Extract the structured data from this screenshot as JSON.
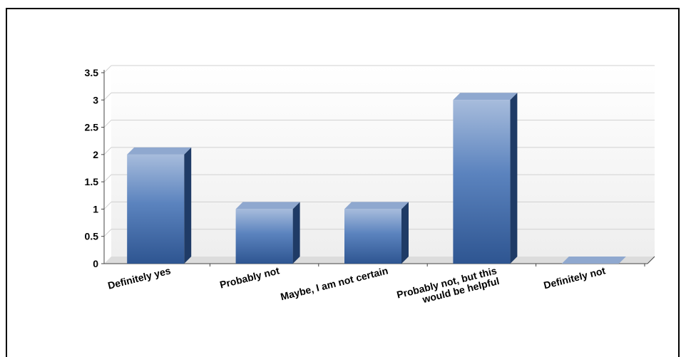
{
  "chart_data": {
    "type": "bar",
    "title": "",
    "xlabel": "",
    "ylabel": "",
    "categories": [
      [
        "Definitely yes"
      ],
      [
        "Probably not"
      ],
      [
        "Maybe, I am not certain"
      ],
      [
        "Probably not, but this",
        "would be helpful"
      ],
      [
        "Definitely not"
      ]
    ],
    "values": [
      2,
      1,
      1,
      3,
      0
    ],
    "ylim": [
      0,
      3.5
    ],
    "yticks": [
      "0",
      "0.5",
      "1",
      "1.5",
      "2",
      "2.5",
      "3",
      "3.5"
    ],
    "grid": true,
    "bar_color": "#3d66a3",
    "bar_style": "3d-gradient"
  }
}
